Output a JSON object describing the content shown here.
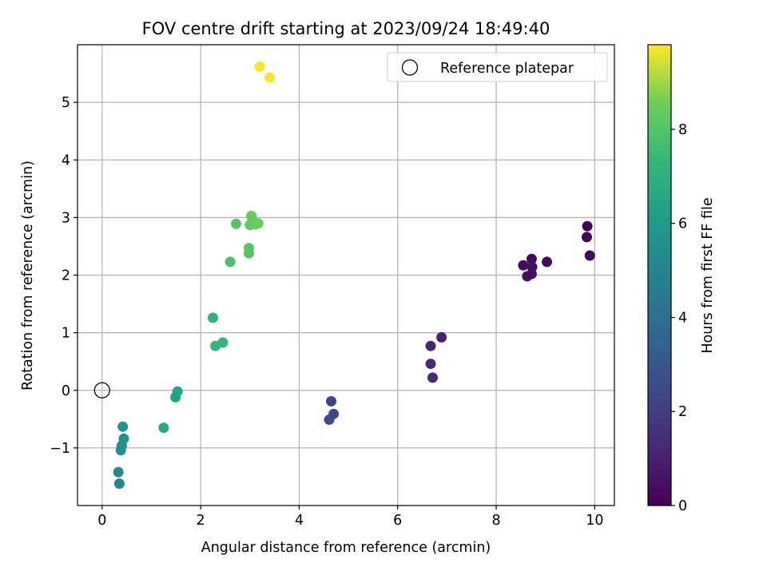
{
  "chart_data": {
    "type": "scatter",
    "title": "FOV centre drift starting at 2023/09/24 18:49:40",
    "xlabel": "Angular distance from reference (arcmin)",
    "ylabel": "Rotation from reference (arcmin)",
    "xlim": [
      -0.5,
      10.4
    ],
    "ylim": [
      -2.0,
      6.0
    ],
    "xticks": [
      0,
      2,
      4,
      6,
      8,
      10
    ],
    "yticks": [
      -1,
      0,
      1,
      2,
      3,
      4,
      5
    ],
    "grid": true,
    "legend": {
      "placement": "top-right",
      "entries": [
        "Reference platepar"
      ]
    },
    "reference_point": {
      "name": "Reference platepar",
      "x": 0,
      "y": 0
    },
    "colorbar": {
      "label": "Hours from first FF file",
      "colormap": "viridis",
      "range": [
        0,
        9.8
      ],
      "ticks": [
        0,
        2,
        4,
        6,
        8
      ]
    },
    "series": [
      {
        "color_by": "hours",
        "points": [
          {
            "x": 9.85,
            "y": 2.85,
            "hours": 0.05
          },
          {
            "x": 9.84,
            "y": 2.66,
            "hours": 0.1
          },
          {
            "x": 9.9,
            "y": 2.34,
            "hours": 0.15
          },
          {
            "x": 9.03,
            "y": 2.23,
            "hours": 0.2
          },
          {
            "x": 8.72,
            "y": 2.28,
            "hours": 0.25
          },
          {
            "x": 8.55,
            "y": 2.17,
            "hours": 0.3
          },
          {
            "x": 8.73,
            "y": 2.14,
            "hours": 0.35
          },
          {
            "x": 8.72,
            "y": 2.02,
            "hours": 0.4
          },
          {
            "x": 8.63,
            "y": 1.98,
            "hours": 0.45
          },
          {
            "x": 6.89,
            "y": 0.92,
            "hours": 1.05
          },
          {
            "x": 6.67,
            "y": 0.77,
            "hours": 1.15
          },
          {
            "x": 6.67,
            "y": 0.46,
            "hours": 1.25
          },
          {
            "x": 6.71,
            "y": 0.22,
            "hours": 1.35
          },
          {
            "x": 4.65,
            "y": -0.19,
            "hours": 2.3
          },
          {
            "x": 4.7,
            "y": -0.41,
            "hours": 2.4
          },
          {
            "x": 4.61,
            "y": -0.51,
            "hours": 2.5
          },
          {
            "x": 0.35,
            "y": -1.62,
            "hours": 5.1
          },
          {
            "x": 0.33,
            "y": -1.42,
            "hours": 5.25
          },
          {
            "x": 0.38,
            "y": -1.04,
            "hours": 5.45
          },
          {
            "x": 0.4,
            "y": -0.96,
            "hours": 5.55
          },
          {
            "x": 0.44,
            "y": -0.84,
            "hours": 5.65
          },
          {
            "x": 0.42,
            "y": -0.63,
            "hours": 5.75
          },
          {
            "x": 1.49,
            "y": -0.12,
            "hours": 6.3
          },
          {
            "x": 1.53,
            "y": -0.02,
            "hours": 6.4
          },
          {
            "x": 1.25,
            "y": -0.65,
            "hours": 6.6
          },
          {
            "x": 2.25,
            "y": 1.26,
            "hours": 7.1
          },
          {
            "x": 2.3,
            "y": 0.77,
            "hours": 7.2
          },
          {
            "x": 2.45,
            "y": 0.83,
            "hours": 7.3
          },
          {
            "x": 2.6,
            "y": 2.23,
            "hours": 7.85
          },
          {
            "x": 2.72,
            "y": 2.89,
            "hours": 8.0
          },
          {
            "x": 2.98,
            "y": 2.38,
            "hours": 8.1
          },
          {
            "x": 2.98,
            "y": 2.47,
            "hours": 8.15
          },
          {
            "x": 3.0,
            "y": 2.87,
            "hours": 8.3
          },
          {
            "x": 3.05,
            "y": 2.97,
            "hours": 8.35
          },
          {
            "x": 3.03,
            "y": 3.03,
            "hours": 8.4
          },
          {
            "x": 3.1,
            "y": 2.88,
            "hours": 8.45
          },
          {
            "x": 3.17,
            "y": 2.9,
            "hours": 8.5
          },
          {
            "x": 3.2,
            "y": 5.62,
            "hours": 9.75
          },
          {
            "x": 3.4,
            "y": 5.43,
            "hours": 9.8
          }
        ]
      }
    ]
  }
}
